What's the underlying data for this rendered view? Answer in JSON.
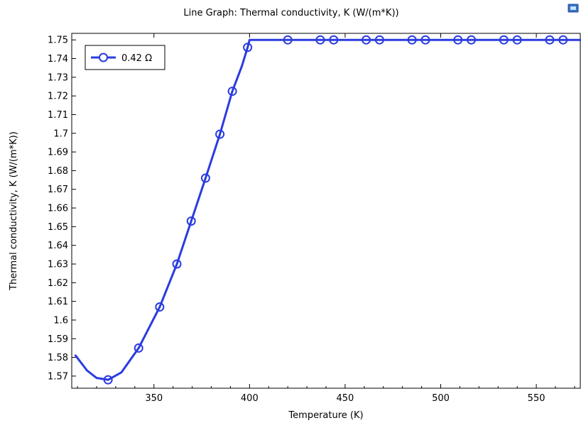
{
  "chart_data": {
    "type": "line",
    "title": "Line Graph: Thermal conductivity, K (W/(m*K))",
    "xlabel": "Temperature (K)",
    "ylabel": "Thermal conductivity, K (W/(m*K))",
    "xlim": [
      307,
      573
    ],
    "ylim": [
      1.5635,
      1.7535
    ],
    "xticks": [
      350,
      400,
      450,
      500,
      550
    ],
    "yticks": [
      1.57,
      1.58,
      1.59,
      1.6,
      1.61,
      1.62,
      1.63,
      1.64,
      1.65,
      1.66,
      1.67,
      1.68,
      1.69,
      1.7,
      1.71,
      1.72,
      1.73,
      1.74,
      1.75
    ],
    "ytick_labels": [
      "1.57",
      "1.58",
      "1.59",
      "1.6",
      "1.61",
      "1.62",
      "1.63",
      "1.64",
      "1.65",
      "1.66",
      "1.67",
      "1.68",
      "1.69",
      "1.7",
      "1.71",
      "1.72",
      "1.73",
      "1.74",
      "1.75"
    ],
    "grid": false,
    "legend_position": "top-left",
    "series": [
      {
        "name": "0.42 Ω",
        "color": "#2a3be0",
        "marker": "circle-open",
        "x": [
          309,
          315,
          320,
          326,
          333,
          342,
          353,
          362,
          369.5,
          377,
          384.5,
          391,
          396,
          399,
          400,
          420,
          437,
          444,
          461,
          468,
          485,
          492,
          509,
          516,
          533,
          540,
          557,
          564,
          573
        ],
        "y": [
          1.581,
          1.573,
          1.569,
          1.568,
          1.572,
          1.585,
          1.607,
          1.63,
          1.653,
          1.676,
          1.6995,
          1.7225,
          1.736,
          1.746,
          1.75,
          1.75,
          1.75,
          1.75,
          1.75,
          1.75,
          1.75,
          1.75,
          1.75,
          1.75,
          1.75,
          1.75,
          1.75,
          1.75,
          1.75
        ],
        "markers_x": [
          326,
          342,
          353,
          362,
          369.5,
          377,
          384.5,
          391,
          399,
          420,
          437,
          444,
          461,
          468,
          485,
          492,
          509,
          516,
          533,
          540,
          557,
          564
        ],
        "markers_y": [
          1.568,
          1.585,
          1.607,
          1.63,
          1.653,
          1.676,
          1.6995,
          1.7225,
          1.746,
          1.75,
          1.75,
          1.75,
          1.75,
          1.75,
          1.75,
          1.75,
          1.75,
          1.75,
          1.75,
          1.75,
          1.75,
          1.75
        ]
      }
    ]
  }
}
